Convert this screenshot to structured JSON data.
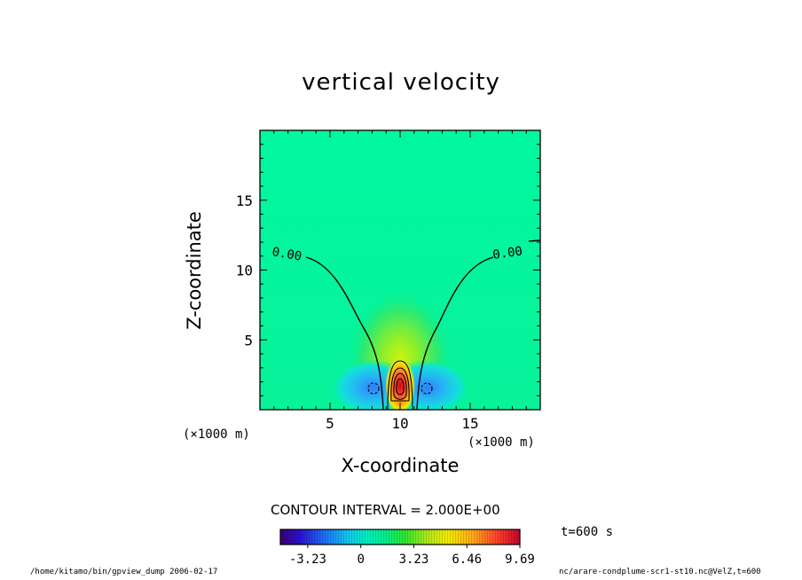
{
  "chart_data": {
    "type": "heatmap",
    "title": "vertical velocity",
    "xlabel": "X-coordinate",
    "ylabel": "Z-coordinate",
    "x_unit": "(×1000 m)",
    "y_unit": "(×1000 m)",
    "xlim": [
      0,
      20
    ],
    "ylim": [
      0,
      20
    ],
    "x_ticks": [
      5,
      10,
      15
    ],
    "y_ticks": [
      5,
      10,
      15
    ],
    "x_tick_labels": [
      "5",
      "10",
      "15"
    ],
    "y_tick_labels": [
      "5",
      "10",
      "15"
    ],
    "contour_label_left": "0.00",
    "contour_label_right": "0.00",
    "contour_interval_text": "CONTOUR INTERVAL = 2.000E+00",
    "colorbar": {
      "min": -4.9,
      "max": 9.69,
      "ticks": [
        -3.23,
        0,
        3.23,
        6.46,
        9.69
      ],
      "tick_labels": [
        "-3.23",
        "0",
        "3.23",
        "6.46",
        "9.69"
      ]
    },
    "time_label": "t=600 s",
    "grid": false,
    "features": [
      {
        "kind": "updraft",
        "x": 10,
        "z": 1.6,
        "peak": 9.69
      },
      {
        "kind": "downdraft",
        "x": 8.2,
        "z": 1.5,
        "peak": -3.3
      },
      {
        "kind": "downdraft",
        "x": 11.8,
        "z": 1.5,
        "peak": -3.3
      }
    ]
  },
  "footer": {
    "left": "/home/kitamo/bin/gpview_dump  2006-02-17",
    "right": "nc/arare-condplume-scr1-st10.nc@VelZ,t=600"
  },
  "colors": {
    "background_field": "#00f5a0",
    "line": "#000000"
  }
}
